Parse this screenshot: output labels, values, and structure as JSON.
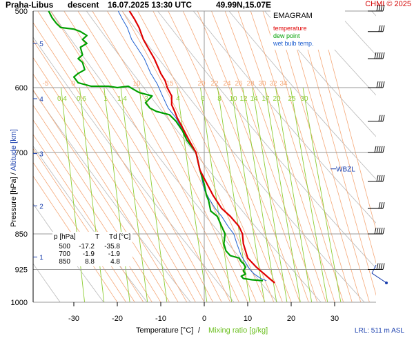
{
  "header": {
    "station": "Praha-Libus",
    "mode": "descent",
    "datetime": "16.07.2025 13:30 UTC",
    "coords": "49.99N,15.07E",
    "copyright": "CHMI © 2025"
  },
  "legend": {
    "title": "EMAGRAM",
    "temperature": "temperature",
    "dew_point": "dew point",
    "wet_bulb": "wet bulb temp."
  },
  "axes": {
    "x_label_temp": "Temperature [°C]",
    "x_label_sep": "/",
    "x_label_mix": "Mixing ratio [g/kg]",
    "y_label_pressure": "Pressure [hPa]",
    "y_label_sep": "/",
    "y_label_alt": "Altitude [km]",
    "lrl": "LRL: 511 m ASL",
    "wbzl": "WBZL"
  },
  "table": {
    "headers": [
      "p [hPa]",
      "T",
      "Td [°C]"
    ],
    "rows": [
      [
        "500",
        "-17.2",
        "-35.8"
      ],
      [
        "700",
        "-1.9",
        "-1.9"
      ],
      [
        "850",
        "8.8",
        "4.8"
      ]
    ]
  },
  "colors": {
    "temperature": "#e00000",
    "dew_point": "#00a000",
    "wet_bulb": "#2060d0",
    "mixing_ratio": "#8ccc30",
    "dry_adiabat": "#b8b8b8",
    "moist_adiabat": "#f5a878",
    "grid": "#999999",
    "altitude": "#1a3fae"
  },
  "chart_data": {
    "type": "line",
    "title": "Praha-Libus descent 16.07.2025 13:30 UTC 49.99N,15.07E",
    "xlabel": "Temperature [°C] / Mixing ratio [g/kg]",
    "ylabel": "Pressure [hPa] / Altitude [km]",
    "xlim": [
      -40,
      40
    ],
    "ylim": [
      1000,
      500
    ],
    "y_scale": "log",
    "x_ticks": [
      -30,
      -20,
      -10,
      0,
      10,
      20,
      30
    ],
    "y_ticks": [
      500,
      600,
      700,
      850,
      925,
      1000
    ],
    "altitude_ticks": [
      {
        "km": 1,
        "p": 898
      },
      {
        "km": 2,
        "p": 795
      },
      {
        "km": 3,
        "p": 702
      },
      {
        "km": 4,
        "p": 616
      },
      {
        "km": 5,
        "p": 540
      }
    ],
    "mixing_ratio_labels": [
      0.4,
      0.6,
      1,
      1.4,
      2,
      4,
      6,
      8,
      10,
      12,
      14,
      17,
      20,
      25,
      30
    ],
    "moist_adiabat_labels": [
      -5,
      0,
      10,
      15,
      20,
      22,
      24,
      26,
      28,
      30,
      32,
      34
    ],
    "wbzl_pressure": 728,
    "series": [
      {
        "name": "temperature",
        "points": [
          [
            16.2,
            955
          ],
          [
            15,
            945
          ],
          [
            13.2,
            930
          ],
          [
            12,
            920
          ],
          [
            11,
            910
          ],
          [
            10,
            900
          ],
          [
            9,
            870
          ],
          [
            8.8,
            850
          ],
          [
            8,
            835
          ],
          [
            6,
            815
          ],
          [
            4,
            800
          ],
          [
            2,
            775
          ],
          [
            0,
            745
          ],
          [
            -1,
            730
          ],
          [
            -1.9,
            700
          ],
          [
            -3.5,
            680
          ],
          [
            -5,
            660
          ],
          [
            -6.2,
            645
          ],
          [
            -6.8,
            635
          ],
          [
            -7.5,
            625
          ],
          [
            -7.5,
            612
          ],
          [
            -8.5,
            600
          ],
          [
            -9,
            590
          ],
          [
            -10,
            580
          ],
          [
            -11.5,
            560
          ],
          [
            -13,
            545
          ],
          [
            -14,
            535
          ],
          [
            -15,
            520
          ],
          [
            -16,
            510
          ],
          [
            -17.2,
            500
          ]
        ]
      },
      {
        "name": "dew point",
        "points": [
          [
            13.5,
            950
          ],
          [
            11,
            948
          ],
          [
            9,
            945
          ],
          [
            8.5,
            940
          ],
          [
            9.5,
            935
          ],
          [
            9,
            928
          ],
          [
            9.5,
            920
          ],
          [
            9,
            912
          ],
          [
            8.5,
            908
          ],
          [
            8,
            900
          ],
          [
            6,
            895
          ],
          [
            5,
            885
          ],
          [
            4.5,
            870
          ],
          [
            4.8,
            850
          ],
          [
            4,
            835
          ],
          [
            3,
            815
          ],
          [
            1.5,
            805
          ],
          [
            1,
            785
          ],
          [
            0.5,
            775
          ],
          [
            0,
            755
          ],
          [
            -1,
            730
          ],
          [
            -1.9,
            700
          ],
          [
            -4,
            680
          ],
          [
            -5,
            665
          ],
          [
            -6.5,
            650
          ],
          [
            -8,
            640
          ],
          [
            -11,
            635
          ],
          [
            -12.5,
            630
          ],
          [
            -13.5,
            622
          ],
          [
            -12,
            612
          ],
          [
            -15,
            607
          ],
          [
            -17.5,
            598
          ],
          [
            -20,
            600
          ],
          [
            -22,
            598
          ],
          [
            -26,
            598
          ],
          [
            -29,
            593
          ],
          [
            -30,
            585
          ],
          [
            -29,
            580
          ],
          [
            -27.5,
            575
          ],
          [
            -28,
            565
          ],
          [
            -29,
            560
          ],
          [
            -28,
            555
          ],
          [
            -28.5,
            545
          ],
          [
            -27,
            540
          ],
          [
            -28,
            535
          ],
          [
            -27,
            530
          ],
          [
            -28.5,
            525
          ],
          [
            -30,
            522
          ],
          [
            -33,
            520
          ],
          [
            -34,
            515
          ],
          [
            -35,
            508
          ],
          [
            -35.8,
            500
          ]
        ]
      },
      {
        "name": "wet bulb temp.",
        "points": [
          [
            14.3,
            950
          ],
          [
            13,
            945
          ],
          [
            11.5,
            935
          ],
          [
            10.5,
            925
          ],
          [
            9.5,
            910
          ],
          [
            8.5,
            895
          ],
          [
            7.5,
            870
          ],
          [
            6.8,
            850
          ],
          [
            5.5,
            835
          ],
          [
            4,
            815
          ],
          [
            2.5,
            800
          ],
          [
            1,
            780
          ],
          [
            0,
            765
          ],
          [
            -1,
            730
          ],
          [
            -1.9,
            700
          ],
          [
            -3.6,
            680
          ],
          [
            -5.3,
            660
          ],
          [
            -6.5,
            645
          ],
          [
            -8.3,
            630
          ],
          [
            -9.6,
            612
          ],
          [
            -10.8,
            595
          ],
          [
            -12.3,
            580
          ],
          [
            -13.8,
            560
          ],
          [
            -15.5,
            545
          ],
          [
            -16.7,
            535
          ],
          [
            -17.7,
            520
          ],
          [
            -18.8,
            510
          ],
          [
            -19.8,
            500
          ]
        ]
      }
    ],
    "wind_levels": [
      955,
      925,
      850,
      800,
      750,
      700,
      650,
      600,
      560,
      525,
      500
    ]
  }
}
